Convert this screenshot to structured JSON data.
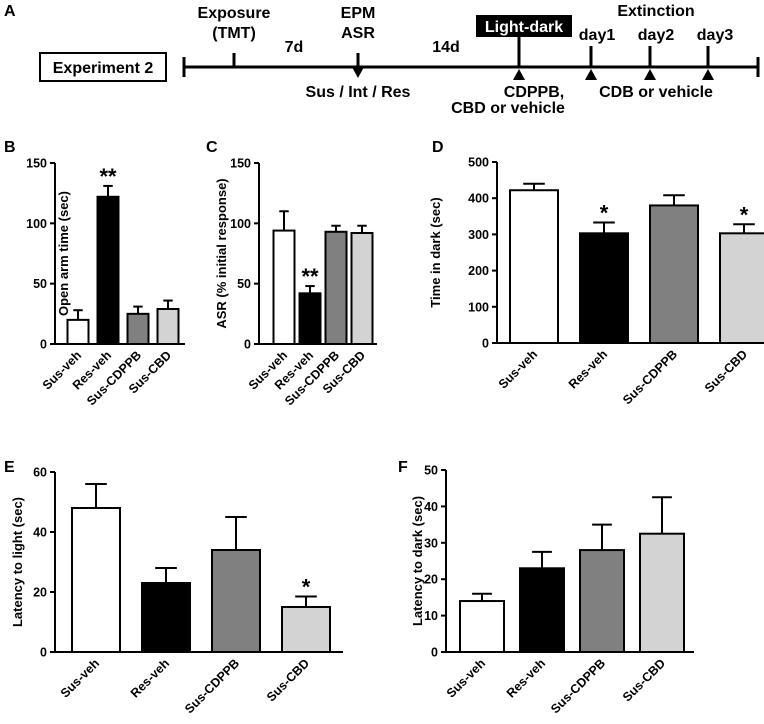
{
  "panel_labels": [
    "A",
    "B",
    "C",
    "D",
    "E",
    "F"
  ],
  "timeline": {
    "experiment": "Experiment 2",
    "exposure": [
      "Exposure",
      "(TMT)"
    ],
    "gap1": "7d",
    "epm": [
      "EPM",
      "ASR"
    ],
    "groups": "Sus / Int / Res",
    "gap2": "14d",
    "lightdark": "Light-dark",
    "drugs": [
      "CDPPB,",
      "CBD or vehicle"
    ],
    "extinction": "Extinction",
    "days": [
      "day1",
      "day2",
      "day3"
    ],
    "ext_drug": "CDB or vehicle"
  },
  "colors": {
    "bar_fills": [
      "#ffffff",
      "#000000",
      "#808080",
      "#d3d3d3"
    ],
    "ink": "#000000"
  },
  "chart_data": [
    {
      "id": "B",
      "type": "bar",
      "title": "",
      "categories": [
        "Sus-veh",
        "Res-veh",
        "Sus-CDPPB",
        "Sus-CBD"
      ],
      "values": [
        20,
        122,
        25,
        29
      ],
      "errors": [
        8,
        9,
        6,
        7
      ],
      "significance": [
        "",
        "**",
        "",
        ""
      ],
      "xlabel": "",
      "ylabel": "Open arm time (sec)",
      "ylim": [
        0,
        150
      ],
      "yticks": [
        0,
        50,
        100,
        150
      ]
    },
    {
      "id": "C",
      "type": "bar",
      "title": "",
      "categories": [
        "Sus-veh",
        "Res-veh",
        "Sus-CDPPB",
        "Sus-CBD"
      ],
      "values": [
        94,
        42,
        93,
        92
      ],
      "errors": [
        16,
        6,
        5,
        6
      ],
      "significance": [
        "",
        "**",
        "",
        ""
      ],
      "xlabel": "",
      "ylabel": "ASR (% initial response)",
      "ylim": [
        0,
        150
      ],
      "yticks": [
        0,
        50,
        100,
        150
      ]
    },
    {
      "id": "D",
      "type": "bar",
      "title": "",
      "categories": [
        "Sus-veh",
        "Res-veh",
        "Sus-CDPPB",
        "Sus-CBD"
      ],
      "values": [
        422,
        303,
        380,
        303
      ],
      "errors": [
        18,
        30,
        28,
        25
      ],
      "significance": [
        "",
        "*",
        "",
        "*"
      ],
      "xlabel": "",
      "ylabel": "Time in dark (sec)",
      "ylim": [
        0,
        500
      ],
      "yticks": [
        0,
        100,
        200,
        300,
        400,
        500
      ]
    },
    {
      "id": "E",
      "type": "bar",
      "title": "",
      "categories": [
        "Sus-veh",
        "Res-veh",
        "Sus-CDPPB",
        "Sus-CBD"
      ],
      "values": [
        48,
        23,
        34,
        15
      ],
      "errors": [
        8,
        5,
        11,
        3.5
      ],
      "significance": [
        "",
        "",
        "",
        "*"
      ],
      "xlabel": "",
      "ylabel": "Latency to light (sec)",
      "ylim": [
        0,
        60
      ],
      "yticks": [
        0,
        20,
        40,
        60
      ]
    },
    {
      "id": "F",
      "type": "bar",
      "title": "",
      "categories": [
        "Sus-veh",
        "Res-veh",
        "Sus-CDPPB",
        "Sus-CBD"
      ],
      "values": [
        14,
        23,
        28,
        32.5
      ],
      "errors": [
        2,
        4.5,
        7,
        10
      ],
      "significance": [
        "",
        "",
        "",
        ""
      ],
      "xlabel": "",
      "ylabel": "Latency to dark (sec)",
      "ylim": [
        0,
        50
      ],
      "yticks": [
        0,
        10,
        20,
        30,
        40,
        50
      ]
    }
  ]
}
